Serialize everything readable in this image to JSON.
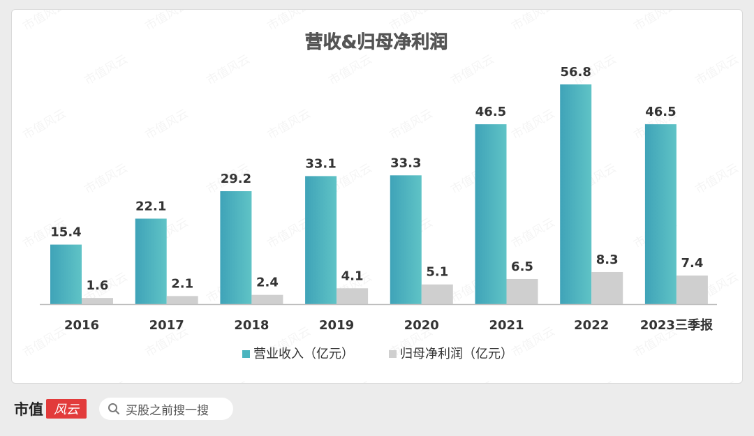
{
  "chart_data": {
    "type": "bar",
    "title": "营收&归母净利润",
    "categories": [
      "2016",
      "2017",
      "2018",
      "2019",
      "2020",
      "2021",
      "2022",
      "2023三季报"
    ],
    "series": [
      {
        "name": "营业收入（亿元）",
        "color": "#4bb5bf",
        "values": [
          15.4,
          22.1,
          29.2,
          33.1,
          33.3,
          46.5,
          56.8,
          46.5
        ]
      },
      {
        "name": "归母净利润（亿元）",
        "color": "#cfcfcf",
        "values": [
          1.6,
          2.1,
          2.4,
          4.1,
          5.1,
          6.5,
          8.3,
          7.4
        ]
      }
    ],
    "ylim": [
      0,
      60
    ],
    "grid": false,
    "legend": "bottom",
    "xlabel": "",
    "ylabel": ""
  },
  "watermark": "市值风云",
  "footer": {
    "brand": "市值",
    "seal": "风云",
    "search_placeholder": "买股之前搜一搜"
  }
}
